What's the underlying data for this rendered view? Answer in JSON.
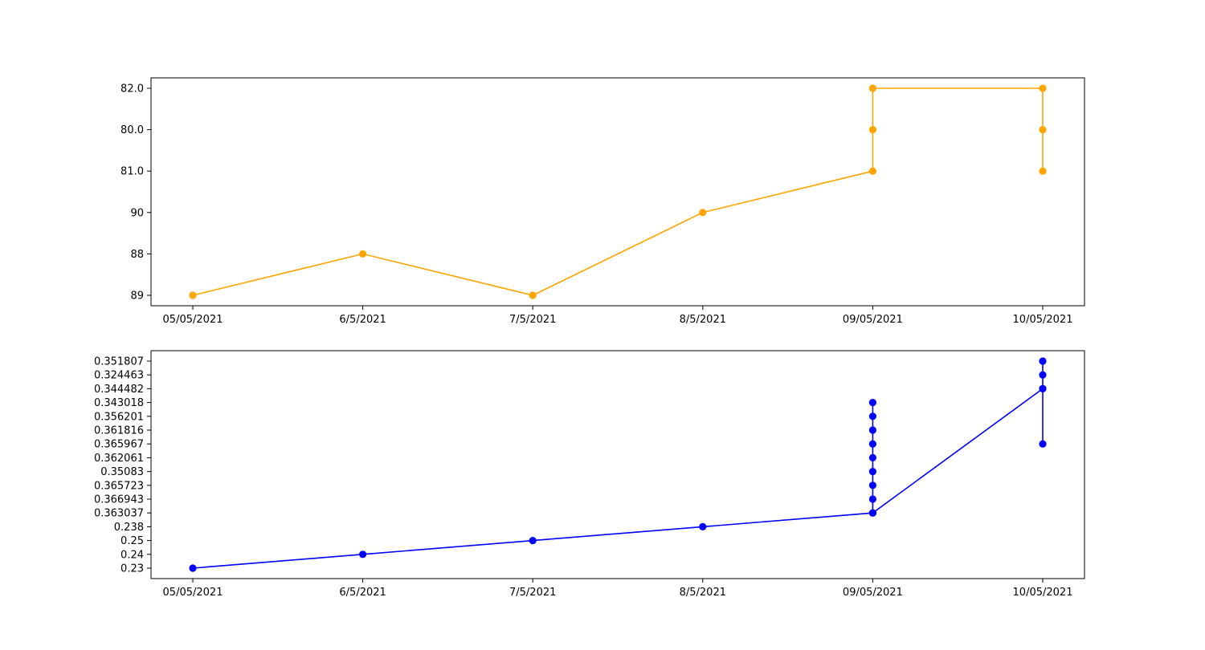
{
  "chart_data": [
    {
      "type": "line",
      "categories": [
        "05/05/2021",
        "6/5/2021",
        "7/5/2021",
        "8/5/2021",
        "09/05/2021",
        "10/05/2021"
      ],
      "y_categories": [
        "89",
        "88",
        "90",
        "81.0",
        "80.0",
        "82.0"
      ],
      "series": [
        {
          "color": "#ffa500",
          "marker": "circle",
          "points": [
            {
              "x": "05/05/2021",
              "y": "89"
            },
            {
              "x": "6/5/2021",
              "y": "88"
            },
            {
              "x": "7/5/2021",
              "y": "89"
            },
            {
              "x": "8/5/2021",
              "y": "90"
            },
            {
              "x": "09/05/2021",
              "y": "81.0"
            },
            {
              "x": "09/05/2021",
              "y": "80.0"
            },
            {
              "x": "09/05/2021",
              "y": "82.0"
            },
            {
              "x": "10/05/2021",
              "y": "82.0"
            },
            {
              "x": "10/05/2021",
              "y": "80.0"
            },
            {
              "x": "10/05/2021",
              "y": "81.0"
            }
          ]
        }
      ],
      "title": "",
      "xlabel": "",
      "ylabel": "",
      "grid": false,
      "legend": "none"
    },
    {
      "type": "line",
      "categories": [
        "05/05/2021",
        "6/5/2021",
        "7/5/2021",
        "8/5/2021",
        "09/05/2021",
        "10/05/2021"
      ],
      "y_categories": [
        "0.23",
        "0.24",
        "0.25",
        "0.238",
        "0.363037",
        "0.366943",
        "0.365723",
        "0.35083",
        "0.362061",
        "0.365967",
        "0.361816",
        "0.356201",
        "0.343018",
        "0.344482",
        "0.324463",
        "0.351807"
      ],
      "series": [
        {
          "color": "#0000ff",
          "marker": "circle",
          "points": [
            {
              "x": "05/05/2021",
              "y": "0.23"
            },
            {
              "x": "6/5/2021",
              "y": "0.24"
            },
            {
              "x": "7/5/2021",
              "y": "0.25"
            },
            {
              "x": "8/5/2021",
              "y": "0.238"
            },
            {
              "x": "09/05/2021",
              "y": "0.363037"
            },
            {
              "x": "09/05/2021",
              "y": "0.366943"
            },
            {
              "x": "09/05/2021",
              "y": "0.365723"
            },
            {
              "x": "09/05/2021",
              "y": "0.35083"
            },
            {
              "x": "09/05/2021",
              "y": "0.362061"
            },
            {
              "x": "09/05/2021",
              "y": "0.365967"
            },
            {
              "x": "09/05/2021",
              "y": "0.361816"
            },
            {
              "x": "09/05/2021",
              "y": "0.356201"
            },
            {
              "x": "09/05/2021",
              "y": "0.343018"
            },
            {
              "x": "09/05/2021",
              "y": "0.363037"
            },
            {
              "x": "10/05/2021",
              "y": "0.344482"
            },
            {
              "x": "10/05/2021",
              "y": "0.365967"
            },
            {
              "x": "10/05/2021",
              "y": "0.344482"
            },
            {
              "x": "10/05/2021",
              "y": "0.324463"
            },
            {
              "x": "10/05/2021",
              "y": "0.351807"
            }
          ]
        }
      ],
      "title": "",
      "xlabel": "",
      "ylabel": "",
      "grid": false,
      "legend": "none"
    }
  ]
}
